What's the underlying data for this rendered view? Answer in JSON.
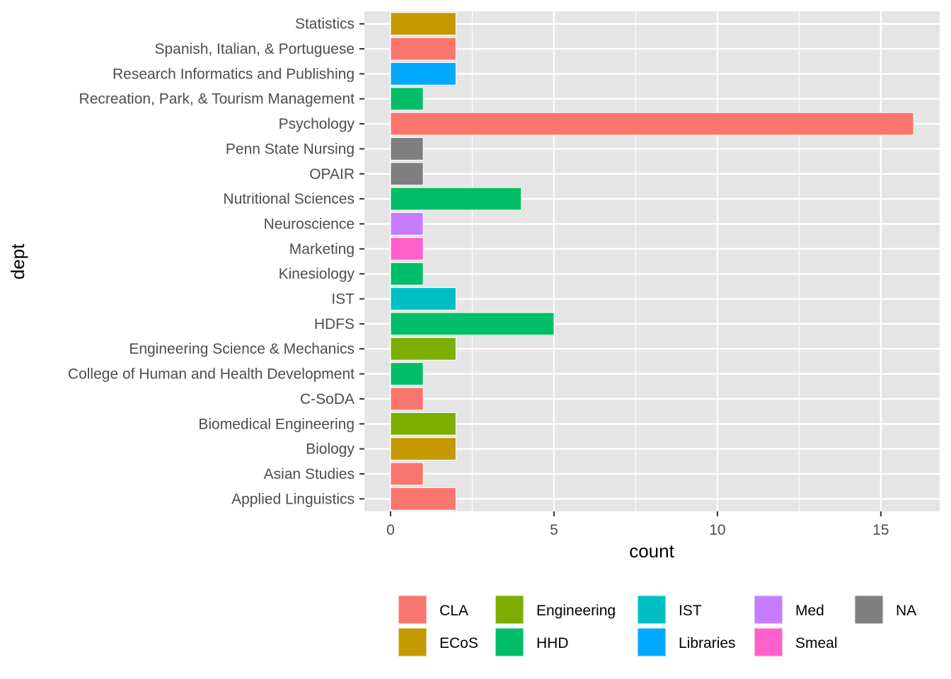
{
  "chart_data": {
    "type": "bar",
    "orientation": "horizontal",
    "xlabel": "count",
    "ylabel": "dept",
    "xlim": [
      -0.8,
      16.8
    ],
    "x_ticks": [
      0,
      5,
      10,
      15
    ],
    "grid": true,
    "legend_position": "bottom",
    "categories": [
      "Applied Linguistics",
      "Asian Studies",
      "Biology",
      "Biomedical Engineering",
      "C-SoDA",
      "College of Human and Health Development",
      "Engineering Science & Mechanics",
      "HDFS",
      "IST",
      "Kinesiology",
      "Marketing",
      "Neuroscience",
      "Nutritional Sciences",
      "OPAIR",
      "Penn State Nursing",
      "Psychology",
      "Recreation, Park, & Tourism Management",
      "Research Informatics and Publishing",
      "Spanish, Italian, & Portuguese",
      "Statistics"
    ],
    "values": [
      2,
      1,
      2,
      2,
      1,
      1,
      2,
      5,
      2,
      1,
      1,
      1,
      4,
      1,
      1,
      16,
      1,
      2,
      2,
      2
    ],
    "groups": [
      "CLA",
      "CLA",
      "ECoS",
      "Engineering",
      "CLA",
      "HHD",
      "Engineering",
      "HHD",
      "IST",
      "HHD",
      "Smeal",
      "Med",
      "HHD",
      "NA",
      "NA",
      "CLA",
      "HHD",
      "Libraries",
      "CLA",
      "ECoS"
    ],
    "legend": [
      {
        "name": "CLA",
        "color": "#F8766D"
      },
      {
        "name": "ECoS",
        "color": "#C49A00"
      },
      {
        "name": "Engineering",
        "color": "#7CAE00"
      },
      {
        "name": "HHD",
        "color": "#00BE67"
      },
      {
        "name": "IST",
        "color": "#00BFC4"
      },
      {
        "name": "Libraries",
        "color": "#00A9FF"
      },
      {
        "name": "Med",
        "color": "#C77CFF"
      },
      {
        "name": "Smeal",
        "color": "#FF61CC"
      },
      {
        "name": "NA",
        "color": "#7F7F7F"
      }
    ]
  },
  "colors": {
    "panel_background": "#E5E5E5",
    "grid_major": "#FFFFFF",
    "bar_outline": "#FFFFFF"
  }
}
